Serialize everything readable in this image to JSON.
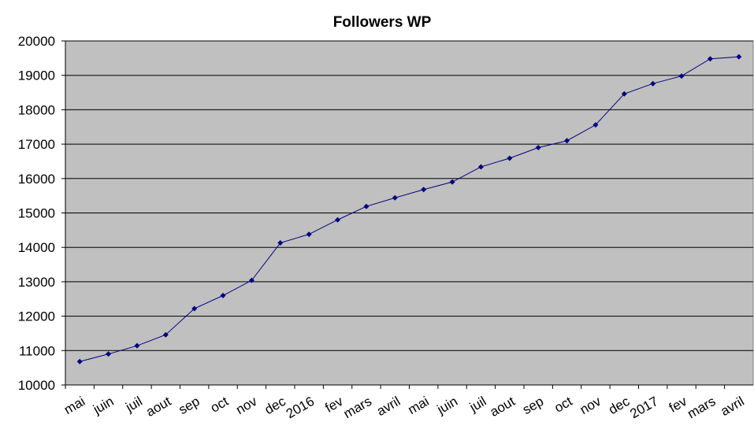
{
  "chart_data": {
    "type": "line",
    "title": "Followers WP",
    "categories": [
      "mai",
      "juin",
      "juil",
      "aout",
      "sep",
      "oct",
      "nov",
      "dec",
      "2016",
      "fev",
      "mars",
      "avril",
      "mai",
      "juin",
      "juil",
      "aout",
      "sep",
      "oct",
      "nov",
      "dec",
      "2017",
      "fev",
      "mars",
      "avril"
    ],
    "series": [
      {
        "name": "Followers",
        "color": "#000080",
        "values": [
          10680,
          10900,
          11140,
          11460,
          12220,
          12600,
          13040,
          14130,
          14380,
          14800,
          15190,
          15440,
          15680,
          15900,
          16340,
          16590,
          16900,
          17100,
          17560,
          18460,
          18760,
          18980,
          19480,
          19540
        ]
      }
    ],
    "ylim": [
      10000,
      20000
    ],
    "yticks": [
      10000,
      11000,
      12000,
      13000,
      14000,
      15000,
      16000,
      17000,
      18000,
      19000,
      20000
    ],
    "grid": true,
    "plot_background": "#c0c0c0"
  }
}
